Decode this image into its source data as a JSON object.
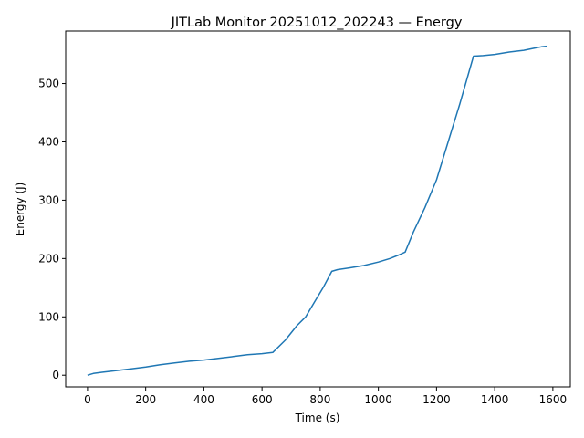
{
  "chart_data": {
    "type": "line",
    "title": "JITLab Monitor 20251012_202243 — Energy",
    "xlabel": "Time (s)",
    "ylabel": "Energy (J)",
    "xlim": [
      -75,
      1660
    ],
    "ylim": [
      -20,
      590
    ],
    "xticks": [
      0,
      200,
      400,
      600,
      800,
      1000,
      1200,
      1400,
      1600
    ],
    "yticks": [
      0,
      100,
      200,
      300,
      400,
      500
    ],
    "grid": false,
    "series": [
      {
        "color": "#1f77b4",
        "x": [
          0,
          20,
          50,
          100,
          150,
          200,
          250,
          300,
          350,
          400,
          450,
          500,
          550,
          600,
          637,
          680,
          720,
          750,
          780,
          810,
          840,
          860,
          900,
          950,
          1000,
          1040,
          1070,
          1092,
          1120,
          1160,
          1200,
          1240,
          1280,
          1300,
          1327,
          1360,
          1400,
          1450,
          1500,
          1540,
          1560,
          1580
        ],
        "y": [
          0,
          3,
          5,
          8,
          11,
          14,
          18,
          21,
          24,
          26,
          29,
          32,
          35,
          37,
          39,
          60,
          85,
          100,
          125,
          150,
          178,
          181,
          184,
          188,
          194,
          200,
          206,
          211,
          245,
          287,
          335,
          400,
          465,
          500,
          547,
          548,
          550,
          554,
          557,
          561,
          563,
          564
        ]
      }
    ]
  }
}
